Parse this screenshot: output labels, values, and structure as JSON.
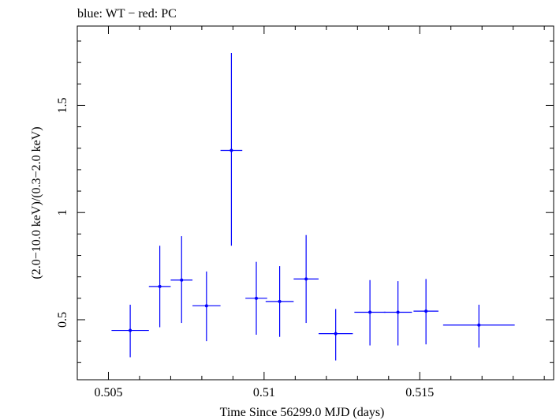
{
  "chart_data": {
    "type": "scatter",
    "title": "blue: WT − red: PC",
    "xlabel": "Time Since 56299.0 MJD (days)",
    "ylabel": "(2.0−10.0 keV)/(0.3−2.0 keV)",
    "xlim": [
      0.504,
      0.5193
    ],
    "ylim": [
      0.22,
      1.87
    ],
    "x_ticks": [
      {
        "value": 0.505,
        "label": "0.505"
      },
      {
        "value": 0.51,
        "label": "0.51"
      },
      {
        "value": 0.515,
        "label": "0.515"
      }
    ],
    "y_ticks": [
      {
        "value": 0.5,
        "label": "0.5"
      },
      {
        "value": 1.0,
        "label": "1"
      },
      {
        "value": 1.5,
        "label": "1.5"
      }
    ],
    "grid": false,
    "series": [
      {
        "name": "WT",
        "color": "#0000ff",
        "points": [
          {
            "x": 0.5057,
            "y": 0.45,
            "xerr": 0.0006,
            "ylo": 0.325,
            "yhi": 0.57
          },
          {
            "x": 0.50665,
            "y": 0.655,
            "xerr": 0.00035,
            "ylo": 0.465,
            "yhi": 0.845
          },
          {
            "x": 0.50735,
            "y": 0.685,
            "xerr": 0.00035,
            "ylo": 0.485,
            "yhi": 0.89
          },
          {
            "x": 0.50815,
            "y": 0.565,
            "xerr": 0.00045,
            "ylo": 0.4,
            "yhi": 0.725
          },
          {
            "x": 0.50895,
            "y": 1.29,
            "xerr": 0.00035,
            "ylo": 0.845,
            "yhi": 1.745
          },
          {
            "x": 0.50975,
            "y": 0.6,
            "xerr": 0.00035,
            "ylo": 0.43,
            "yhi": 0.77
          },
          {
            "x": 0.5105,
            "y": 0.585,
            "xerr": 0.00045,
            "ylo": 0.42,
            "yhi": 0.75
          },
          {
            "x": 0.51135,
            "y": 0.69,
            "xerr": 0.0004,
            "ylo": 0.485,
            "yhi": 0.895
          },
          {
            "x": 0.5123,
            "y": 0.435,
            "xerr": 0.00055,
            "ylo": 0.31,
            "yhi": 0.55
          },
          {
            "x": 0.5134,
            "y": 0.535,
            "xerr": 0.0005,
            "ylo": 0.38,
            "yhi": 0.685
          },
          {
            "x": 0.5143,
            "y": 0.535,
            "xerr": 0.00045,
            "ylo": 0.38,
            "yhi": 0.68
          },
          {
            "x": 0.5152,
            "y": 0.54,
            "xerr": 0.0004,
            "ylo": 0.385,
            "yhi": 0.69
          },
          {
            "x": 0.5169,
            "y": 0.475,
            "xerr": 0.00115,
            "ylo": 0.37,
            "yhi": 0.57
          }
        ]
      }
    ]
  }
}
